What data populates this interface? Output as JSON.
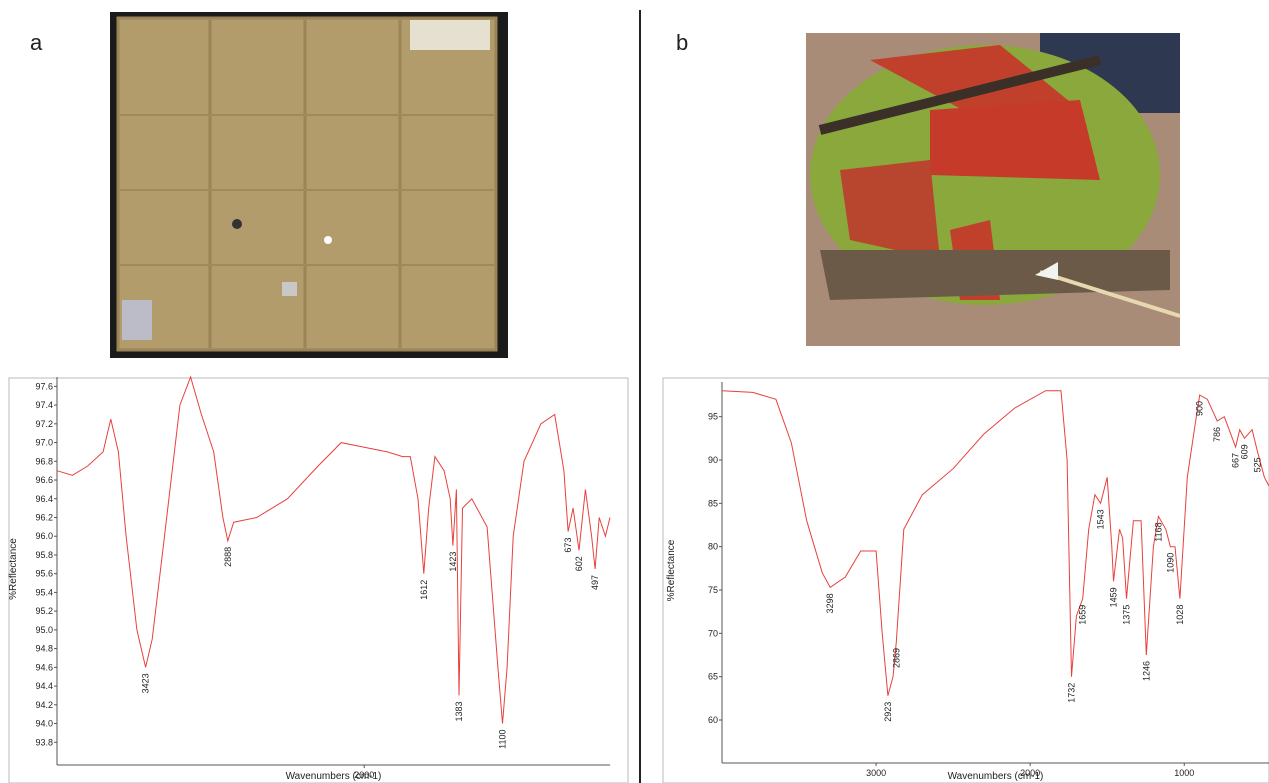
{
  "chart_data": [
    {
      "type": "line",
      "panel": "a",
      "x_label": "Wavenumbers (cm-1)",
      "y_label": "%Reflectance",
      "xlim": [
        4000,
        400
      ],
      "xticks": [
        2000
      ],
      "ylim": [
        93.6,
        97.7
      ],
      "yticks": [
        {
          "value": 93.8,
          "label": "93.8"
        },
        {
          "value": 94.0,
          "label": "94.0"
        },
        {
          "value": 94.2,
          "label": "94.2"
        },
        {
          "value": 94.4,
          "label": "94.4"
        },
        {
          "value": 94.6,
          "label": "94.6"
        },
        {
          "value": 94.8,
          "label": "94.8"
        },
        {
          "value": 95.0,
          "label": "95.0"
        },
        {
          "value": 95.2,
          "label": "95.2"
        },
        {
          "value": 95.4,
          "label": "95.4"
        },
        {
          "value": 95.6,
          "label": "95.6"
        },
        {
          "value": 95.8,
          "label": "95.8"
        },
        {
          "value": 96.0,
          "label": "96.0"
        },
        {
          "value": 96.2,
          "label": "96.2"
        },
        {
          "value": 96.4,
          "label": "96.4"
        },
        {
          "value": 96.6,
          "label": "96.6"
        },
        {
          "value": 96.8,
          "label": "96.8"
        },
        {
          "value": 97.0,
          "label": "97.0"
        },
        {
          "value": 97.2,
          "label": "97.2"
        },
        {
          "value": 97.4,
          "label": "97.4"
        },
        {
          "value": 97.6,
          "label": "97.6"
        }
      ],
      "color": "#e8413c",
      "x": [
        4000,
        3900,
        3800,
        3700,
        3650,
        3600,
        3550,
        3480,
        3423,
        3380,
        3300,
        3200,
        3130,
        3060,
        2980,
        2920,
        2888,
        2850,
        2700,
        2500,
        2300,
        2150,
        2000,
        1850,
        1750,
        1700,
        1650,
        1612,
        1580,
        1540,
        1480,
        1440,
        1423,
        1400,
        1383,
        1360,
        1300,
        1200,
        1130,
        1100,
        1070,
        1030,
        960,
        850,
        760,
        700,
        673,
        640,
        602,
        560,
        520,
        497,
        470,
        430,
        400
      ],
      "values": [
        96.7,
        96.65,
        96.75,
        96.9,
        97.25,
        96.9,
        96.0,
        95.0,
        94.6,
        94.9,
        96.0,
        97.4,
        97.7,
        97.3,
        96.9,
        96.2,
        95.95,
        96.15,
        96.2,
        96.4,
        96.75,
        97.0,
        96.95,
        96.9,
        96.85,
        96.85,
        96.4,
        95.6,
        96.3,
        96.85,
        96.7,
        96.4,
        95.9,
        96.5,
        94.3,
        96.3,
        96.4,
        96.1,
        94.6,
        94.0,
        94.6,
        96.0,
        96.8,
        97.2,
        97.3,
        96.7,
        96.05,
        96.3,
        95.85,
        96.5,
        96.0,
        95.65,
        96.2,
        96.0,
        96.2
      ],
      "peaks": [
        3423,
        2888,
        1612,
        1423,
        1383,
        1100,
        673,
        602,
        497
      ]
    },
    {
      "type": "line",
      "panel": "b",
      "x_label": "Wavenumbers (cm-1)",
      "y_label": "%Reflectance",
      "xlim": [
        4000,
        450
      ],
      "xticks": [
        3000,
        2000,
        1000
      ],
      "ylim": [
        55.5,
        99
      ],
      "yticks": [
        60,
        65,
        70,
        75,
        80,
        85,
        90,
        95
      ],
      "color": "#e8413c",
      "x": [
        4000,
        3800,
        3650,
        3550,
        3450,
        3350,
        3298,
        3200,
        3100,
        3000,
        2960,
        2923,
        2890,
        2869,
        2820,
        2700,
        2500,
        2300,
        2100,
        1900,
        1800,
        1760,
        1732,
        1700,
        1659,
        1620,
        1580,
        1543,
        1500,
        1470,
        1459,
        1420,
        1400,
        1375,
        1330,
        1280,
        1246,
        1200,
        1168,
        1120,
        1090,
        1060,
        1028,
        980,
        930,
        900,
        850,
        786,
        740,
        667,
        640,
        609,
        560,
        525,
        480,
        450
      ],
      "values": [
        98,
        97.8,
        97,
        92,
        83,
        77,
        75.3,
        76.5,
        79.5,
        79.5,
        70,
        62.8,
        65,
        69,
        82,
        86,
        89,
        93,
        96,
        98,
        98,
        90,
        65,
        72,
        74,
        82,
        86,
        85,
        88,
        80,
        76,
        82,
        81,
        74,
        83,
        83,
        67.5,
        80,
        83.5,
        82,
        80,
        80,
        74,
        88,
        94,
        97.5,
        97,
        94.5,
        95,
        91.5,
        93.5,
        92.5,
        93.5,
        91,
        88,
        87
      ],
      "peaks": [
        3298,
        2923,
        2869,
        1732,
        1659,
        1543,
        1459,
        1375,
        1246,
        1168,
        1090,
        1028,
        900,
        786,
        667,
        609,
        525
      ]
    }
  ]
}
